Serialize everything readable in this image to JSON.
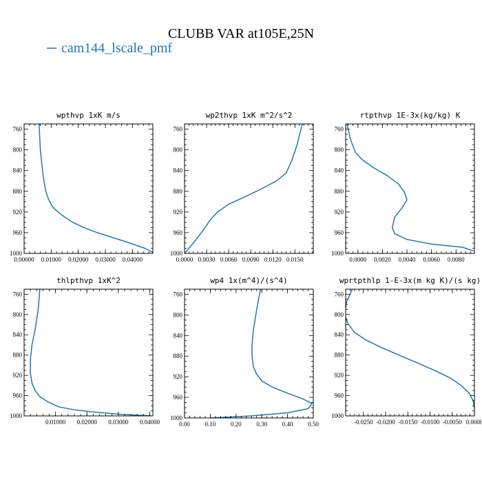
{
  "figure": {
    "title": "CLUBB VAR at105E,25N",
    "legend": [
      {
        "label": "cam144_lscale_pmf",
        "color": "#1f77b4"
      }
    ]
  },
  "chart_data": [
    {
      "type": "line",
      "title": "wpthvp  1xK m/s",
      "xlim": [
        0.0,
        0.0475
      ],
      "ylim": [
        1000,
        750
      ],
      "y_reversed": true,
      "xticks": [
        0.0,
        0.01,
        0.02,
        0.03,
        0.04
      ],
      "xtick_labels": [
        "0.00000",
        "0.01000",
        "0.02000",
        "0.03000",
        "0.04000"
      ],
      "yticks": [
        760,
        800,
        840,
        880,
        920,
        960,
        1000
      ],
      "ytick_labels": [
        "760",
        "800",
        "840",
        "880",
        "920",
        "960",
        "1000"
      ],
      "series": [
        {
          "color": "#1f77b4",
          "x": [
            0.0055,
            0.006,
            0.007,
            0.008,
            0.009,
            0.0105,
            0.0125,
            0.015,
            0.018,
            0.022,
            0.027,
            0.033,
            0.039,
            0.0445,
            0.0475
          ],
          "y": [
            750,
            800,
            850,
            880,
            895,
            910,
            920,
            930,
            940,
            950,
            960,
            970,
            980,
            990,
            998
          ]
        }
      ]
    },
    {
      "type": "line",
      "title": "wp2thvp  1xK m^2/s^2",
      "xlim": [
        0.0,
        0.0175
      ],
      "ylim": [
        1000,
        750
      ],
      "y_reversed": true,
      "xticks": [
        0.0,
        0.003,
        0.006,
        0.009,
        0.012,
        0.015
      ],
      "xtick_labels": [
        "0.0000",
        "0.0030",
        "0.0060",
        "0.0090",
        "0.0120",
        "0.0150"
      ],
      "yticks": [
        760,
        800,
        840,
        880,
        920,
        960,
        1000
      ],
      "ytick_labels": [
        "760",
        "800",
        "840",
        "880",
        "920",
        "960",
        "1000"
      ],
      "series": [
        {
          "color": "#1f77b4",
          "x": [
            0.0,
            0.0006,
            0.0013,
            0.002,
            0.0028,
            0.0035,
            0.0045,
            0.006,
            0.0083,
            0.0105,
            0.0125,
            0.0138,
            0.0146,
            0.0153,
            0.016
          ],
          "y": [
            1000,
            990,
            978,
            965,
            950,
            935,
            920,
            905,
            890,
            875,
            860,
            845,
            820,
            790,
            750
          ]
        }
      ]
    },
    {
      "type": "line",
      "title": "rtpthvp  1E-3x(kg/kg) K",
      "xlim": [
        -0.001,
        0.0095
      ],
      "ylim": [
        1000,
        750
      ],
      "y_reversed": true,
      "xticks": [
        0.0,
        0.002,
        0.004,
        0.006,
        0.008
      ],
      "xtick_labels": [
        "0.0000",
        "0.0020",
        "0.0040",
        "0.0060",
        "0.0080"
      ],
      "yticks": [
        760,
        800,
        840,
        880,
        920,
        960,
        1000
      ],
      "ytick_labels": [
        "760",
        "800",
        "840",
        "880",
        "920",
        "960",
        "1000"
      ],
      "series": [
        {
          "color": "#1f77b4",
          "x": [
            -0.0009,
            -0.0006,
            -0.0002,
            0.0004,
            0.0013,
            0.0024,
            0.0033,
            0.0038,
            0.004,
            0.0036,
            0.003,
            0.0028,
            0.003,
            0.004,
            0.006,
            0.0085,
            0.0094
          ],
          "y": [
            750,
            780,
            805,
            820,
            835,
            850,
            866,
            882,
            897,
            912,
            930,
            950,
            962,
            973,
            982,
            988,
            995
          ]
        }
      ]
    },
    {
      "type": "line",
      "title": "thlpthvp  1xK^2",
      "xlim": [
        0.0,
        0.041
      ],
      "ylim": [
        1000,
        750
      ],
      "y_reversed": true,
      "xticks": [
        0.01,
        0.02,
        0.03,
        0.04
      ],
      "xtick_labels": [
        "0.01000",
        "0.02000",
        "0.03000",
        "0.04000"
      ],
      "yticks": [
        760,
        800,
        840,
        880,
        920,
        960,
        1000
      ],
      "ytick_labels": [
        "760",
        "800",
        "840",
        "880",
        "920",
        "960",
        "1000"
      ],
      "series": [
        {
          "color": "#1f77b4",
          "x": [
            0.005,
            0.0045,
            0.0035,
            0.0025,
            0.002,
            0.002,
            0.0025,
            0.0035,
            0.005,
            0.0075,
            0.011,
            0.016,
            0.023,
            0.031,
            0.038,
            0.0405
          ],
          "y": [
            750,
            790,
            830,
            860,
            890,
            915,
            935,
            950,
            962,
            972,
            982,
            988,
            993,
            997,
            999,
            1000
          ]
        }
      ]
    },
    {
      "type": "line",
      "title": "wp4  1x(m^4)/(s^4)",
      "xlim": [
        0.0,
        0.5
      ],
      "ylim": [
        1000,
        750
      ],
      "y_reversed": true,
      "xticks": [
        0.0,
        0.1,
        0.2,
        0.3,
        0.4,
        0.5
      ],
      "xtick_labels": [
        "0.00",
        "0.10",
        "0.20",
        "0.30",
        "0.40",
        "0.50"
      ],
      "yticks": [
        760,
        800,
        840,
        880,
        920,
        960,
        1000
      ],
      "ytick_labels": [
        "760",
        "800",
        "840",
        "880",
        "920",
        "960",
        "1000"
      ],
      "series": [
        {
          "color": "#1f77b4",
          "x": [
            0.295,
            0.28,
            0.267,
            0.262,
            0.262,
            0.267,
            0.28,
            0.3,
            0.34,
            0.4,
            0.46,
            0.495,
            0.48,
            0.4,
            0.26,
            0.1
          ],
          "y": [
            750,
            790,
            830,
            860,
            880,
            900,
            915,
            928,
            940,
            952,
            963,
            972,
            982,
            990,
            996,
            1000
          ]
        }
      ]
    },
    {
      "type": "line",
      "title": "wprtpthlp  1-E-3x(m kg K)/(s kg)",
      "xlim": [
        -0.029,
        0.0
      ],
      "ylim": [
        1000,
        750
      ],
      "y_reversed": true,
      "xticks": [
        -0.025,
        -0.02,
        -0.015,
        -0.01,
        -0.005,
        0.0
      ],
      "xtick_labels": [
        "-0.0250",
        "-0.0200",
        "-0.0150",
        "-0.0100",
        "-0.0050",
        "0.0000"
      ],
      "yticks": [
        760,
        800,
        840,
        880,
        920,
        960,
        1000
      ],
      "ytick_labels": [
        "760",
        "800",
        "840",
        "880",
        "920",
        "960",
        "1000"
      ],
      "series": [
        {
          "color": "#1f77b4",
          "x": [
            -0.0275,
            -0.0288,
            -0.0292,
            -0.0285,
            -0.027,
            -0.0245,
            -0.021,
            -0.017,
            -0.013,
            -0.009,
            -0.0055,
            -0.003,
            -0.0012,
            -0.0003,
            0.0
          ],
          "y": [
            750,
            775,
            800,
            818,
            835,
            850,
            865,
            880,
            895,
            910,
            925,
            940,
            955,
            970,
            985
          ]
        }
      ]
    }
  ]
}
